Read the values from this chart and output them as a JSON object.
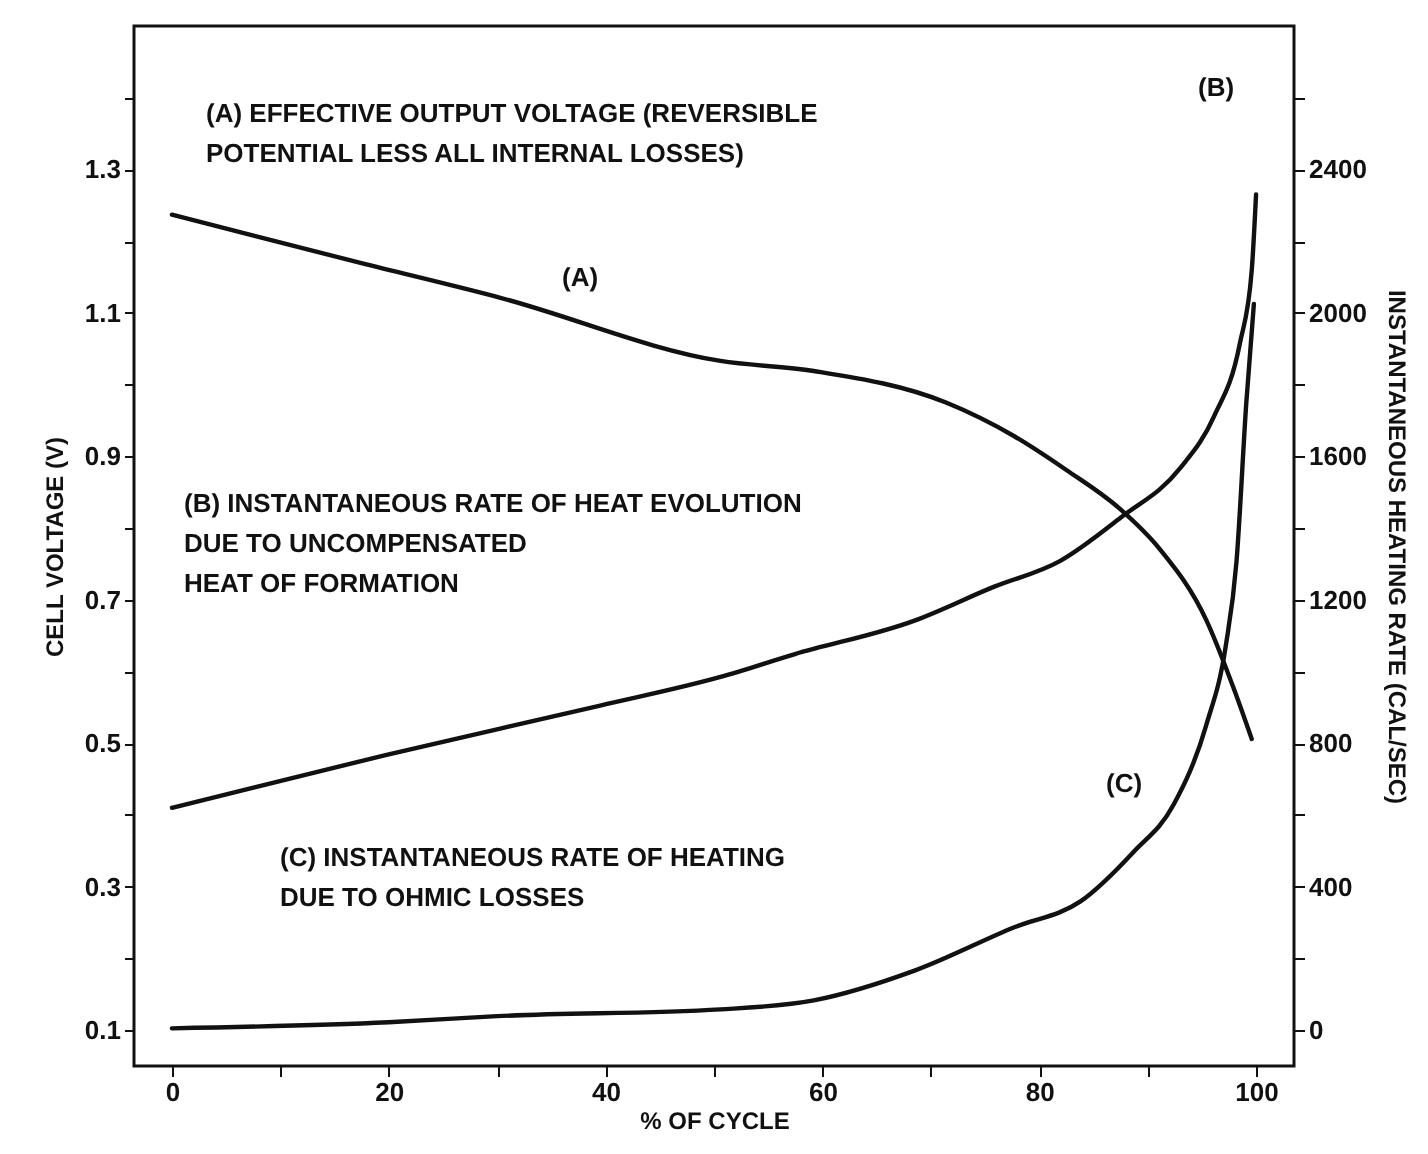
{
  "chart_data": {
    "type": "line",
    "xlabel": "% OF CYCLE",
    "ylabel": "CELL VOLTAGE (V)",
    "y2label": "INSTANTANEOUS HEATING RATE (CAL/SEC)",
    "xlim": [
      -3.5,
      103.5
    ],
    "ylim": [
      0.05,
      1.5
    ],
    "y2lim": [
      -100,
      2800
    ],
    "xticks": [
      0,
      {
        "value": 10,
        "label": null
      },
      20,
      {
        "value": 30,
        "label": null
      },
      40,
      {
        "value": 50,
        "label": null
      },
      60,
      {
        "value": 70,
        "label": null
      },
      80,
      {
        "value": 90,
        "label": null
      },
      100
    ],
    "yticks": [
      0.1,
      {
        "value": 0.2,
        "label": null
      },
      0.3,
      {
        "value": 0.4,
        "label": null
      },
      0.5,
      {
        "value": 0.6,
        "label": null
      },
      0.7,
      {
        "value": 0.8,
        "label": null
      },
      0.9,
      {
        "value": 1.0,
        "label": null
      },
      1.1,
      {
        "value": 1.2,
        "label": null
      },
      1.3,
      {
        "value": 1.4,
        "label": null
      }
    ],
    "y2ticks": [
      0,
      {
        "value": 200,
        "label": null
      },
      400,
      {
        "value": 600,
        "label": null
      },
      800,
      {
        "value": 1000,
        "label": null
      },
      1200,
      {
        "value": 1400,
        "label": null
      },
      1600,
      {
        "value": 1800,
        "label": null
      },
      2000,
      {
        "value": 2200,
        "label": null
      },
      2400,
      {
        "value": 2600,
        "label": null
      }
    ],
    "grid": false,
    "marker": "none",
    "line_style": "solid",
    "series": [
      {
        "color": "#111111",
        "x": [
          0,
          17.3,
          30.3,
          50.6,
          59.2,
          71.4,
          77.7,
          82.5,
          87.5,
          91.1,
          95.4,
          97.9,
          99.6
        ],
        "values": [
          1.237,
          1.17,
          1.121,
          1.033,
          1.019,
          0.975,
          0.928,
          0.881,
          0.826,
          0.771,
          0.672,
          0.578,
          0.506
        ]
      },
      {
        "color": "#111111",
        "axis": "y2",
        "x": [
          0,
          19.7,
          39.5,
          50.6,
          57.4,
          68.5,
          75.8,
          81.9,
          87.5,
          93.0,
          96.1,
          98.5,
          99.6,
          100
        ],
        "values": [
          620,
          767,
          905,
          985,
          1048,
          1142,
          1236,
          1308,
          1429,
          1567,
          1710,
          1914,
          2118,
          2330
        ]
      },
      {
        "color": "#111111",
        "axis": "y2",
        "x": [
          0,
          20,
          30,
          50.6,
          59.2,
          68.5,
          77.7,
          83.8,
          88.7,
          92.4,
          95.4,
          97.2,
          98.2,
          99.1,
          99.8
        ],
        "values": [
          5,
          22,
          39,
          58,
          83,
          166,
          287,
          359,
          497,
          629,
          850,
          1070,
          1308,
          1749,
          2025
        ]
      }
    ],
    "annotations": [
      "(A) EFFECTIVE OUTPUT VOLTAGE (REVERSIBLE\n      POTENTIAL LESS ALL INTERNAL LOSSES)",
      "(B) INSTANTANEOUS RATE OF HEAT EVOLUTION\n      DUE TO UNCOMPENSATED\n      HEAT OF FORMATION",
      "(C) INSTANTANEOUS RATE OF HEATING\n      DUE TO OHMIC LOSSES",
      "(A)",
      "(B)",
      "(C)"
    ]
  }
}
